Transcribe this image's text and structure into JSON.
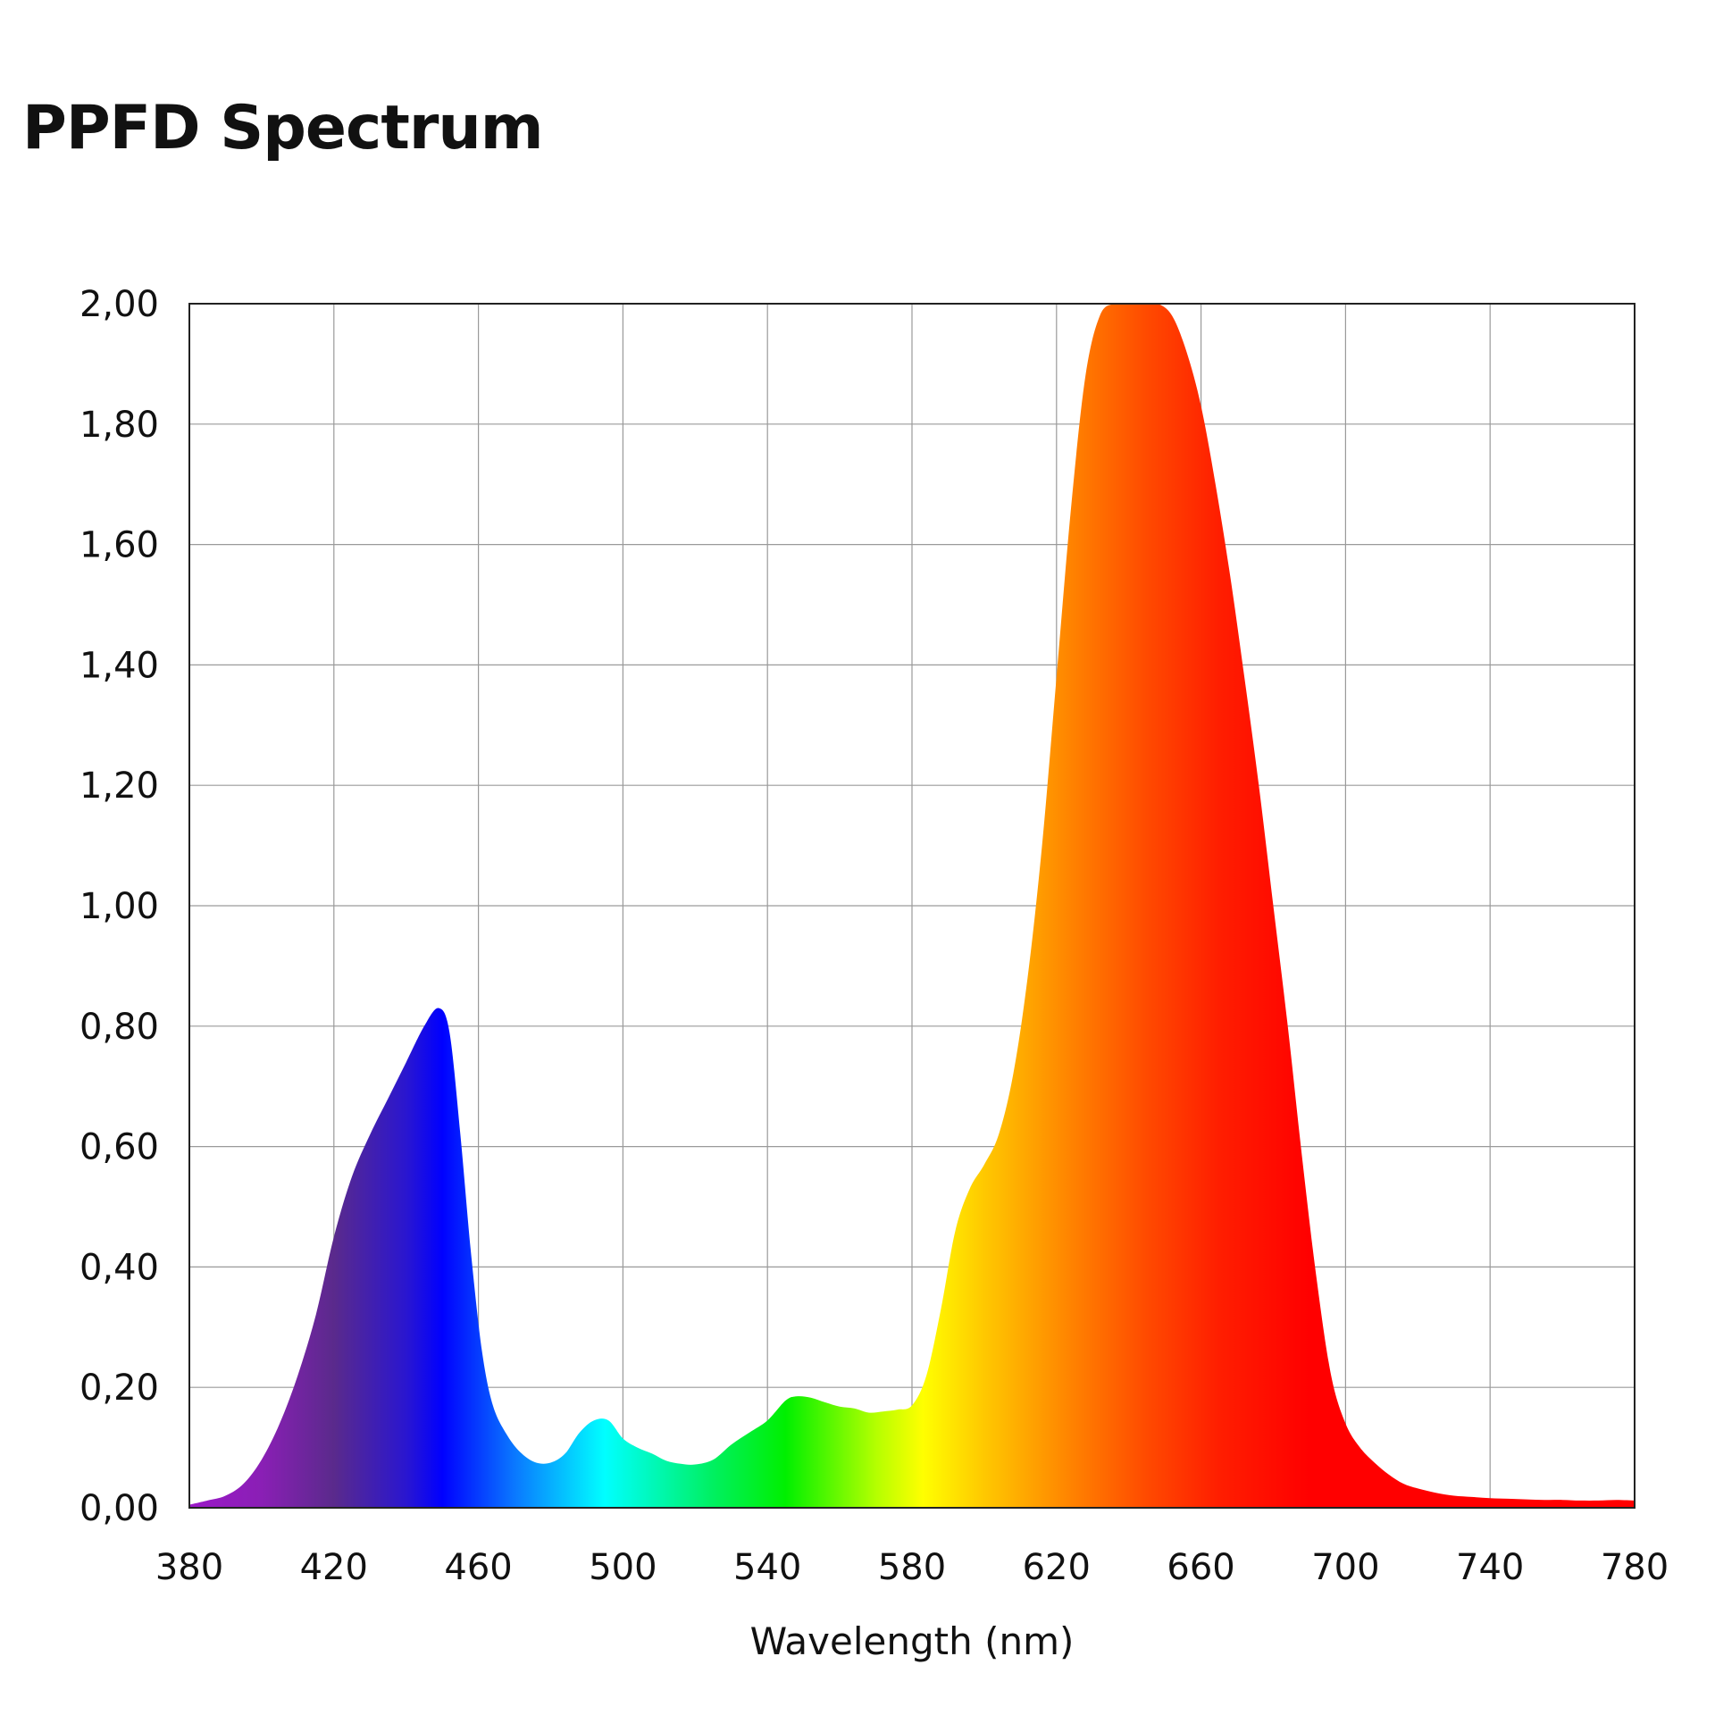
{
  "chart_data": {
    "type": "area",
    "title": "PPFD Spectrum",
    "xlabel": "Wavelength (nm)",
    "ylabel": "",
    "xlim": [
      380,
      780
    ],
    "ylim": [
      0,
      2
    ],
    "grid": true,
    "legend": "none",
    "x_ticks": [
      380,
      420,
      460,
      500,
      540,
      580,
      620,
      660,
      700,
      740,
      780
    ],
    "x_tick_labels": [
      "380",
      "420",
      "460",
      "500",
      "540",
      "580",
      "620",
      "660",
      "700",
      "740",
      "780"
    ],
    "y_ticks": [
      0,
      0.2,
      0.4,
      0.6,
      0.8,
      1.0,
      1.2,
      1.4,
      1.6,
      1.8,
      2.0
    ],
    "y_tick_labels": [
      "0,00",
      "0,20",
      "0,40",
      "0,60",
      "0,80",
      "1,00",
      "1,20",
      "1,40",
      "1,60",
      "1,80",
      "2,00"
    ],
    "fill": "visible-spectrum gradient",
    "series": [
      {
        "x": [
          380,
          385,
          390,
          395,
          400,
          405,
          410,
          415,
          420,
          425,
          430,
          435,
          440,
          445,
          449,
          452,
          455,
          458,
          461,
          464,
          468,
          472,
          476,
          480,
          484,
          488,
          492,
          496,
          500,
          504,
          508,
          512,
          516,
          520,
          525,
          530,
          535,
          540,
          545,
          548,
          552,
          556,
          560,
          564,
          568,
          572,
          576,
          580,
          584,
          588,
          592,
          596,
          600,
          604,
          608,
          612,
          616,
          620,
          624,
          628,
          632,
          636,
          640,
          644,
          648,
          652,
          656,
          660,
          664,
          668,
          672,
          676,
          680,
          684,
          688,
          692,
          696,
          700,
          704,
          708,
          712,
          716,
          720,
          725,
          730,
          735,
          740,
          745,
          750,
          755,
          760,
          765,
          770,
          775,
          780
        ],
        "y": [
          0.005,
          0.012,
          0.02,
          0.04,
          0.08,
          0.14,
          0.22,
          0.32,
          0.45,
          0.55,
          0.62,
          0.68,
          0.74,
          0.8,
          0.83,
          0.79,
          0.62,
          0.42,
          0.26,
          0.17,
          0.12,
          0.09,
          0.075,
          0.075,
          0.09,
          0.125,
          0.145,
          0.145,
          0.115,
          0.1,
          0.09,
          0.078,
          0.073,
          0.072,
          0.08,
          0.105,
          0.125,
          0.145,
          0.178,
          0.185,
          0.183,
          0.175,
          0.168,
          0.165,
          0.158,
          0.16,
          0.163,
          0.17,
          0.22,
          0.33,
          0.46,
          0.53,
          0.57,
          0.62,
          0.72,
          0.88,
          1.1,
          1.38,
          1.66,
          1.88,
          1.98,
          2.0,
          2.0,
          2.0,
          2.0,
          1.98,
          1.92,
          1.83,
          1.7,
          1.55,
          1.38,
          1.2,
          1.0,
          0.8,
          0.58,
          0.38,
          0.22,
          0.14,
          0.1,
          0.075,
          0.055,
          0.04,
          0.032,
          0.025,
          0.02,
          0.018,
          0.016,
          0.015,
          0.014,
          0.013,
          0.013,
          0.012,
          0.012,
          0.013,
          0.012
        ]
      }
    ],
    "gradient_stops": [
      {
        "wavelength": 380,
        "color": "#9b19c8"
      },
      {
        "wavelength": 400,
        "color": "#8a1fb5"
      },
      {
        "wavelength": 420,
        "color": "#5a2a8c"
      },
      {
        "wavelength": 440,
        "color": "#2a16d0"
      },
      {
        "wavelength": 450,
        "color": "#0000ff"
      },
      {
        "wavelength": 470,
        "color": "#0a78ff"
      },
      {
        "wavelength": 495,
        "color": "#00ffff"
      },
      {
        "wavelength": 525,
        "color": "#00f060"
      },
      {
        "wavelength": 545,
        "color": "#00f000"
      },
      {
        "wavelength": 570,
        "color": "#b4ff00"
      },
      {
        "wavelength": 583,
        "color": "#ffff00"
      },
      {
        "wavelength": 600,
        "color": "#ffc800"
      },
      {
        "wavelength": 625,
        "color": "#ff8000"
      },
      {
        "wavelength": 645,
        "color": "#ff4a00"
      },
      {
        "wavelength": 665,
        "color": "#ff1e00"
      },
      {
        "wavelength": 690,
        "color": "#ff0000"
      },
      {
        "wavelength": 780,
        "color": "#ff0000"
      }
    ]
  }
}
